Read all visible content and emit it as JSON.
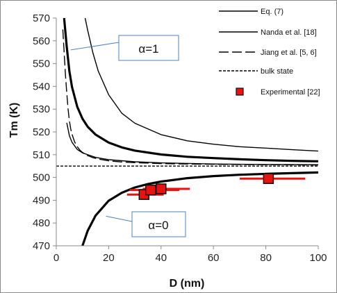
{
  "chart_data": {
    "type": "line",
    "xlabel": "D (nm)",
    "ylabel": "Tm (K)",
    "xlim": [
      0,
      100
    ],
    "ylim": [
      470,
      570
    ],
    "x_ticks": [
      0,
      20,
      40,
      60,
      80,
      100
    ],
    "y_ticks": [
      470,
      480,
      490,
      500,
      510,
      520,
      530,
      540,
      550,
      560,
      570
    ],
    "grid": false,
    "legend_position": "top-right",
    "series": [
      {
        "name": "Eq. (7)",
        "style": "thick-solid",
        "x": [
          3,
          4,
          5,
          6,
          8,
          10,
          12,
          15,
          20,
          25,
          30,
          40,
          50,
          60,
          70,
          80,
          90,
          100
        ],
        "y": [
          570,
          557.2,
          546.8,
          539.8,
          531,
          525.8,
          522.3,
          518.8,
          515.3,
          513.2,
          511.8,
          510.1,
          509.1,
          508.5,
          508,
          507.6,
          507.3,
          507.1
        ]
      },
      {
        "name": "Eq. (7)",
        "style": "thick-solid",
        "x": [
          10,
          12,
          15,
          20,
          25,
          30,
          35,
          40,
          50,
          60,
          70,
          80,
          90,
          100
        ],
        "y": [
          470,
          476.6,
          483.3,
          489.8,
          493.3,
          495.6,
          497.1,
          498.2,
          499.7,
          500.6,
          501.2,
          501.6,
          501.9,
          502.2
        ]
      },
      {
        "name": "Nanda et al. [18]",
        "style": "solid",
        "x": [
          11,
          12,
          14,
          16,
          20,
          25,
          30,
          40,
          50,
          60,
          70,
          80,
          90,
          100
        ],
        "y": [
          570,
          564.6,
          554.6,
          546.8,
          536.3,
          528.2,
          523.8,
          518.8,
          516.1,
          514.6,
          513.5,
          512.9,
          512.2,
          511.6
        ]
      },
      {
        "name": "Nanda et al. [18]",
        "style": "solid",
        "x": [
          4,
          5,
          6,
          8,
          10,
          15,
          20,
          30,
          40,
          60,
          80,
          100
        ],
        "y": [
          524,
          518.4,
          515.5,
          512.3,
          510.8,
          508.8,
          507.8,
          506.9,
          506.4,
          505.9,
          505.7,
          505.6
        ]
      },
      {
        "name": "Jiang et al. [5, 6]",
        "style": "long-dash",
        "x": [
          2.5,
          3,
          3.5,
          4,
          4.5,
          5,
          5.5,
          6,
          7,
          8,
          9,
          10,
          12,
          14,
          16,
          20,
          25,
          30,
          40,
          50,
          60,
          80,
          100
        ],
        "y": [
          565,
          555,
          545,
          537,
          530,
          525,
          521.5,
          519,
          515.6,
          513.5,
          512,
          511,
          509.6,
          508.7,
          508.1,
          507.3,
          506.8,
          506.5,
          506.1,
          505.9,
          505.8,
          505.6,
          505.5
        ]
      },
      {
        "name": "bulk state",
        "style": "short-dash",
        "x": [
          0,
          100
        ],
        "y": [
          505,
          505
        ]
      }
    ],
    "experimental": {
      "name": "Experimental [22]",
      "points": [
        {
          "x": 33.5,
          "y": 492.5,
          "xerr_min": 27,
          "xerr_max": 41
        },
        {
          "x": 36,
          "y": 494.5,
          "xerr_min": 28,
          "xerr_max": 47
        },
        {
          "x": 40,
          "y": 495,
          "xerr_min": 33,
          "xerr_max": 51
        },
        {
          "x": 81,
          "y": 499.5,
          "xerr_min": 70,
          "xerr_max": 95
        }
      ],
      "colors": {
        "marker": "#e8120f",
        "marker_edge": "#111111",
        "error_bar": "#e8120f"
      }
    },
    "annotations": [
      {
        "text": "α=1",
        "points_to": {
          "x": 5.5,
          "y": 556
        }
      },
      {
        "text": "α=0",
        "points_to": {
          "x": 19,
          "y": 483
        }
      }
    ]
  }
}
